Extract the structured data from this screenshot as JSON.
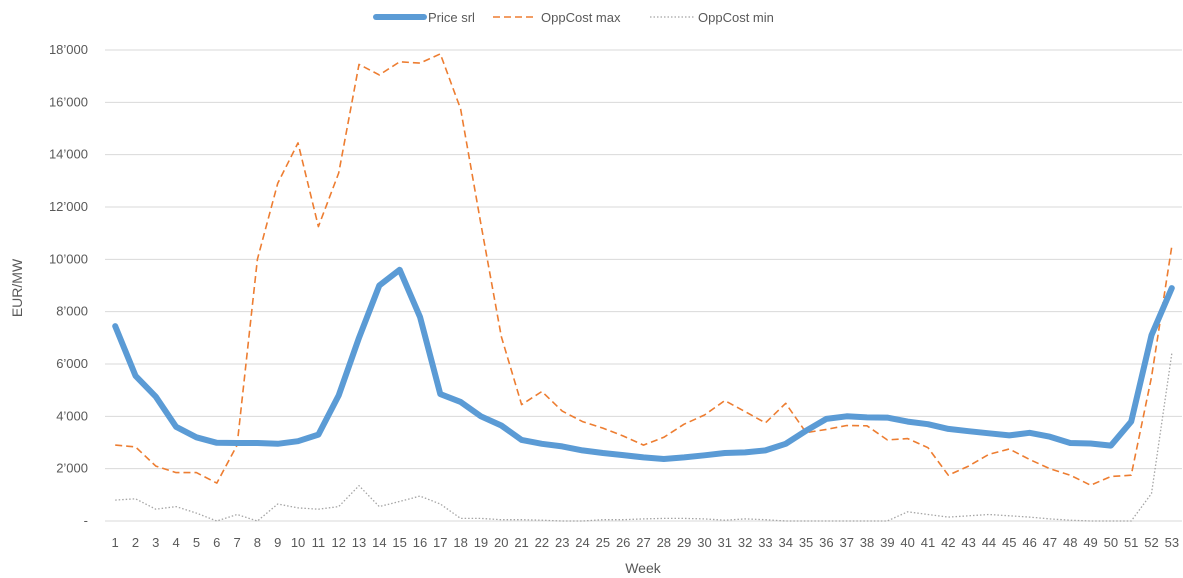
{
  "chart_data": {
    "type": "line",
    "xlabel": "Week",
    "ylabel": "EUR/MW",
    "ylim": [
      0,
      18000
    ],
    "y_ticks": [
      {
        "value": 0,
        "label": "-"
      },
      {
        "value": 2000,
        "label": "2’000"
      },
      {
        "value": 4000,
        "label": "4’000"
      },
      {
        "value": 6000,
        "label": "6’000"
      },
      {
        "value": 8000,
        "label": "8’000"
      },
      {
        "value": 10000,
        "label": "10’000"
      },
      {
        "value": 12000,
        "label": "12’000"
      },
      {
        "value": 14000,
        "label": "14’000"
      },
      {
        "value": 16000,
        "label": "16’000"
      },
      {
        "value": 18000,
        "label": "18’000"
      }
    ],
    "grid": "horizontal",
    "legend_position": "top-center",
    "categories": [
      "1",
      "2",
      "3",
      "4",
      "5",
      "6",
      "7",
      "8",
      "9",
      "10",
      "11",
      "12",
      "13",
      "14",
      "15",
      "16",
      "17",
      "18",
      "19",
      "20",
      "21",
      "22",
      "23",
      "24",
      "25",
      "26",
      "27",
      "28",
      "29",
      "30",
      "31",
      "32",
      "33",
      "34",
      "35",
      "36",
      "37",
      "38",
      "39",
      "40",
      "41",
      "42",
      "43",
      "44",
      "45",
      "46",
      "47",
      "48",
      "49",
      "50",
      "51",
      "52",
      "53"
    ],
    "series": [
      {
        "name": "Price srl",
        "color": "#5b9bd5",
        "style": "solid-thick",
        "values": [
          7450,
          5550,
          4750,
          3600,
          3200,
          2990,
          2980,
          2980,
          2950,
          3050,
          3300,
          4800,
          7000,
          9000,
          9600,
          7800,
          4850,
          4550,
          4000,
          3650,
          3100,
          2950,
          2850,
          2700,
          2600,
          2520,
          2430,
          2370,
          2430,
          2510,
          2600,
          2620,
          2700,
          2950,
          3450,
          3900,
          4000,
          3960,
          3950,
          3800,
          3700,
          3520,
          3430,
          3350,
          3270,
          3370,
          3220,
          2980,
          2960,
          2880,
          3800,
          7100,
          8900
        ]
      },
      {
        "name": "OppCost max",
        "color": "#ed7d31",
        "style": "dashed",
        "values": [
          2900,
          2830,
          2100,
          1850,
          1850,
          1450,
          2900,
          10000,
          12900,
          14450,
          11250,
          13300,
          17450,
          17050,
          17550,
          17500,
          17850,
          15750,
          11350,
          7050,
          4450,
          4950,
          4200,
          3800,
          3550,
          3250,
          2900,
          3200,
          3700,
          4050,
          4600,
          4180,
          3750,
          4500,
          3380,
          3500,
          3650,
          3640,
          3100,
          3150,
          2800,
          1750,
          2100,
          2550,
          2750,
          2350,
          2000,
          1750,
          1370,
          1700,
          1750,
          5500,
          10500
        ]
      },
      {
        "name": "OppCost min",
        "color": "#a5a5a5",
        "style": "dotted",
        "values": [
          800,
          850,
          450,
          550,
          300,
          0,
          250,
          0,
          650,
          500,
          450,
          550,
          1350,
          550,
          750,
          950,
          650,
          100,
          100,
          50,
          50,
          30,
          0,
          0,
          50,
          50,
          80,
          100,
          100,
          80,
          30,
          80,
          50,
          0,
          0,
          0,
          0,
          0,
          0,
          350,
          250,
          150,
          200,
          250,
          200,
          150,
          80,
          30,
          0,
          0,
          0,
          1050,
          6400
        ]
      }
    ]
  }
}
